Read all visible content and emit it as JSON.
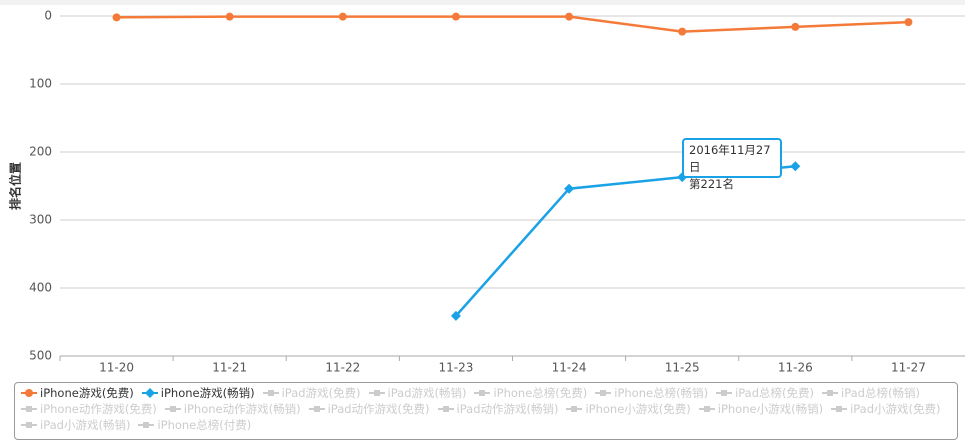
{
  "chart_data": {
    "type": "line",
    "y_axis_label": "排名位置",
    "categories": [
      "11-20",
      "11-21",
      "11-22",
      "11-23",
      "11-24",
      "11-25",
      "11-26",
      "11-27"
    ],
    "series": [
      {
        "name": "iPhone游戏(免费)",
        "color": "#f47a3a",
        "marker": "circle",
        "values": [
          2,
          1,
          1,
          1,
          1,
          23,
          16,
          9
        ]
      },
      {
        "name": "iPhone游戏(畅销)",
        "color": "#1aa2e6",
        "marker": "diamond",
        "values": [
          null,
          null,
          null,
          441,
          254,
          237,
          221,
          null
        ]
      }
    ],
    "inactive_series": [
      "iPad游戏(免费)",
      "iPad游戏(畅销)",
      "iPhone总榜(免费)",
      "iPhone总榜(畅销)",
      "iPad总榜(免费)",
      "iPad总榜(畅销)",
      "iPhone动作游戏(免费)",
      "iPhone动作游戏(畅销)",
      "iPad动作游戏(免费)",
      "iPad动作游戏(畅销)",
      "iPhone小游戏(免费)",
      "iPhone小游戏(畅销)",
      "iPad小游戏(免费)",
      "iPad小游戏(畅销)",
      "iPhone总榜(付费)"
    ],
    "inactive_color": "#cccccc",
    "ylim": [
      0,
      500
    ],
    "yticks": [
      0,
      100,
      200,
      300,
      400,
      500
    ],
    "y_reversed": true,
    "grid": true,
    "tooltip": {
      "title": "2016年11月27日",
      "text": "第221名"
    }
  }
}
